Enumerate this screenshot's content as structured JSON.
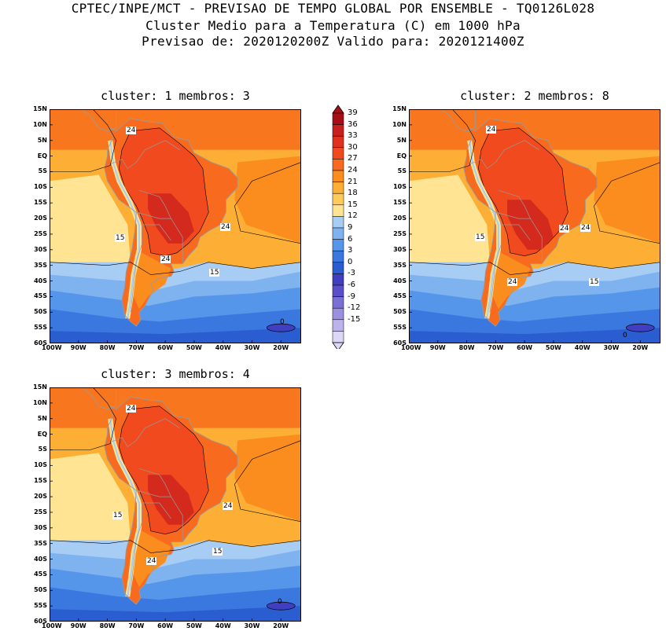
{
  "header": {
    "line1": "CPTEC/INPE/MCT - PREVISAO DE TEMPO GLOBAL POR ENSEMBLE - TQ0126L028",
    "line2": "Cluster Medio para a Temperatura (C) em 1000 hPa",
    "line3": "Previsao de: 2020120200Z   Valido para: 2020121400Z"
  },
  "panels": [
    {
      "title": "cluster: 1   membros: 3",
      "contour_labels": [
        "24",
        "24",
        "24",
        "15",
        "15",
        "0"
      ]
    },
    {
      "title": "cluster: 2   membros: 8",
      "contour_labels": [
        "24",
        "24",
        "24",
        "24",
        "15",
        "15",
        "0"
      ]
    },
    {
      "title": "cluster: 3   membros: 4",
      "contour_labels": [
        "24",
        "24",
        "24",
        "15",
        "15",
        "0"
      ]
    }
  ],
  "axes": {
    "lat_ticks": [
      "15N",
      "10N",
      "5N",
      "EQ",
      "5S",
      "10S",
      "15S",
      "20S",
      "25S",
      "30S",
      "35S",
      "40S",
      "45S",
      "50S",
      "55S",
      "60S"
    ],
    "lon_ticks": [
      "100W",
      "90W",
      "80W",
      "70W",
      "60W",
      "50W",
      "40W",
      "30W",
      "20W"
    ]
  },
  "colorbar": {
    "labels": [
      "39",
      "36",
      "33",
      "30",
      "27",
      "24",
      "21",
      "18",
      "15",
      "12",
      "9",
      "6",
      "3",
      "0",
      "-3",
      "-6",
      "-9",
      "-12",
      "-15"
    ],
    "colors": [
      "#a50f15",
      "#c8201e",
      "#e0301e",
      "#f04a1e",
      "#f86a1e",
      "#fb8c1e",
      "#fdae34",
      "#fecb5a",
      "#fee493",
      "#a8cdf5",
      "#7fb3f0",
      "#5596ea",
      "#3a78e0",
      "#2a5dcf",
      "#3f3fbf",
      "#5a4fc8",
      "#7a6fd4",
      "#9b8fe0",
      "#bdb3ec",
      "#ddd6f6"
    ]
  }
}
